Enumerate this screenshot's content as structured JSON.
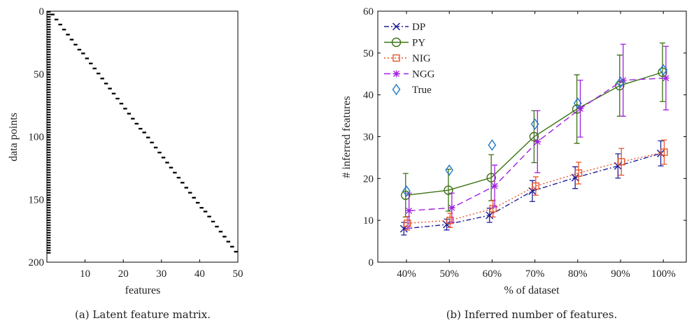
{
  "chart_data": [
    {
      "type": "heatmap",
      "caption": "(a) Latent feature matrix.",
      "xlabel": "features",
      "ylabel": "data points",
      "xticks": [
        10,
        20,
        30,
        40,
        50
      ],
      "yticks": [
        0,
        50,
        100,
        150,
        200
      ],
      "xlim": [
        0,
        50
      ],
      "ylim": [
        200,
        0
      ],
      "n_rows": 193,
      "n_features": 50,
      "colors": {
        "on": "#000000",
        "off": "#ffffff"
      }
    },
    {
      "type": "line",
      "caption": "(b) Inferred number of features.",
      "xlabel": "% of dataset",
      "ylabel": "# inferred features",
      "categories": [
        "40%",
        "50%",
        "60%",
        "70%",
        "80%",
        "90%",
        "100%"
      ],
      "ylim": [
        0,
        60
      ],
      "yticks": [
        0,
        10,
        20,
        30,
        40,
        50,
        60
      ],
      "legend_position": "top-left",
      "series": [
        {
          "name": "DP",
          "color": "#1f1f9a",
          "marker": "x",
          "dash": "7,3,2,3",
          "offset": -0.06,
          "values": [
            8,
            9,
            11.2,
            17,
            20.2,
            23,
            26
          ],
          "err": [
            1.5,
            1.3,
            1.7,
            2.5,
            2.6,
            2.9,
            3.0
          ]
        },
        {
          "name": "PY",
          "color": "#3a7212",
          "marker": "circle",
          "dash": "",
          "offset": -0.02,
          "values": [
            16,
            17.2,
            20.2,
            30,
            36.6,
            42.2,
            45.4
          ],
          "err": [
            5.2,
            5.0,
            5.5,
            6.2,
            8.2,
            7.3,
            7.0
          ]
        },
        {
          "name": "NIG",
          "color": "#e8552a",
          "marker": "square",
          "dash": "2,3",
          "offset": 0.02,
          "values": [
            9.3,
            10,
            12.8,
            18.2,
            21.3,
            24,
            26.3
          ],
          "err": [
            1.6,
            1.7,
            2.0,
            2.2,
            2.6,
            3.2,
            2.9
          ]
        },
        {
          "name": "NGG",
          "color": "#a020e0",
          "marker": "asterisk",
          "dash": "9,5",
          "offset": 0.06,
          "values": [
            12.3,
            13,
            18.2,
            28.8,
            36.7,
            43.5,
            44
          ],
          "err": [
            4.2,
            3.5,
            5.0,
            7.4,
            6.8,
            8.6,
            7.6
          ]
        },
        {
          "name": "True",
          "color": "#1f78c8",
          "marker": "diamond",
          "dash": "none",
          "offset": 0.0,
          "values": [
            17,
            22,
            28,
            33,
            38,
            43,
            46
          ],
          "err": null
        }
      ]
    }
  ]
}
